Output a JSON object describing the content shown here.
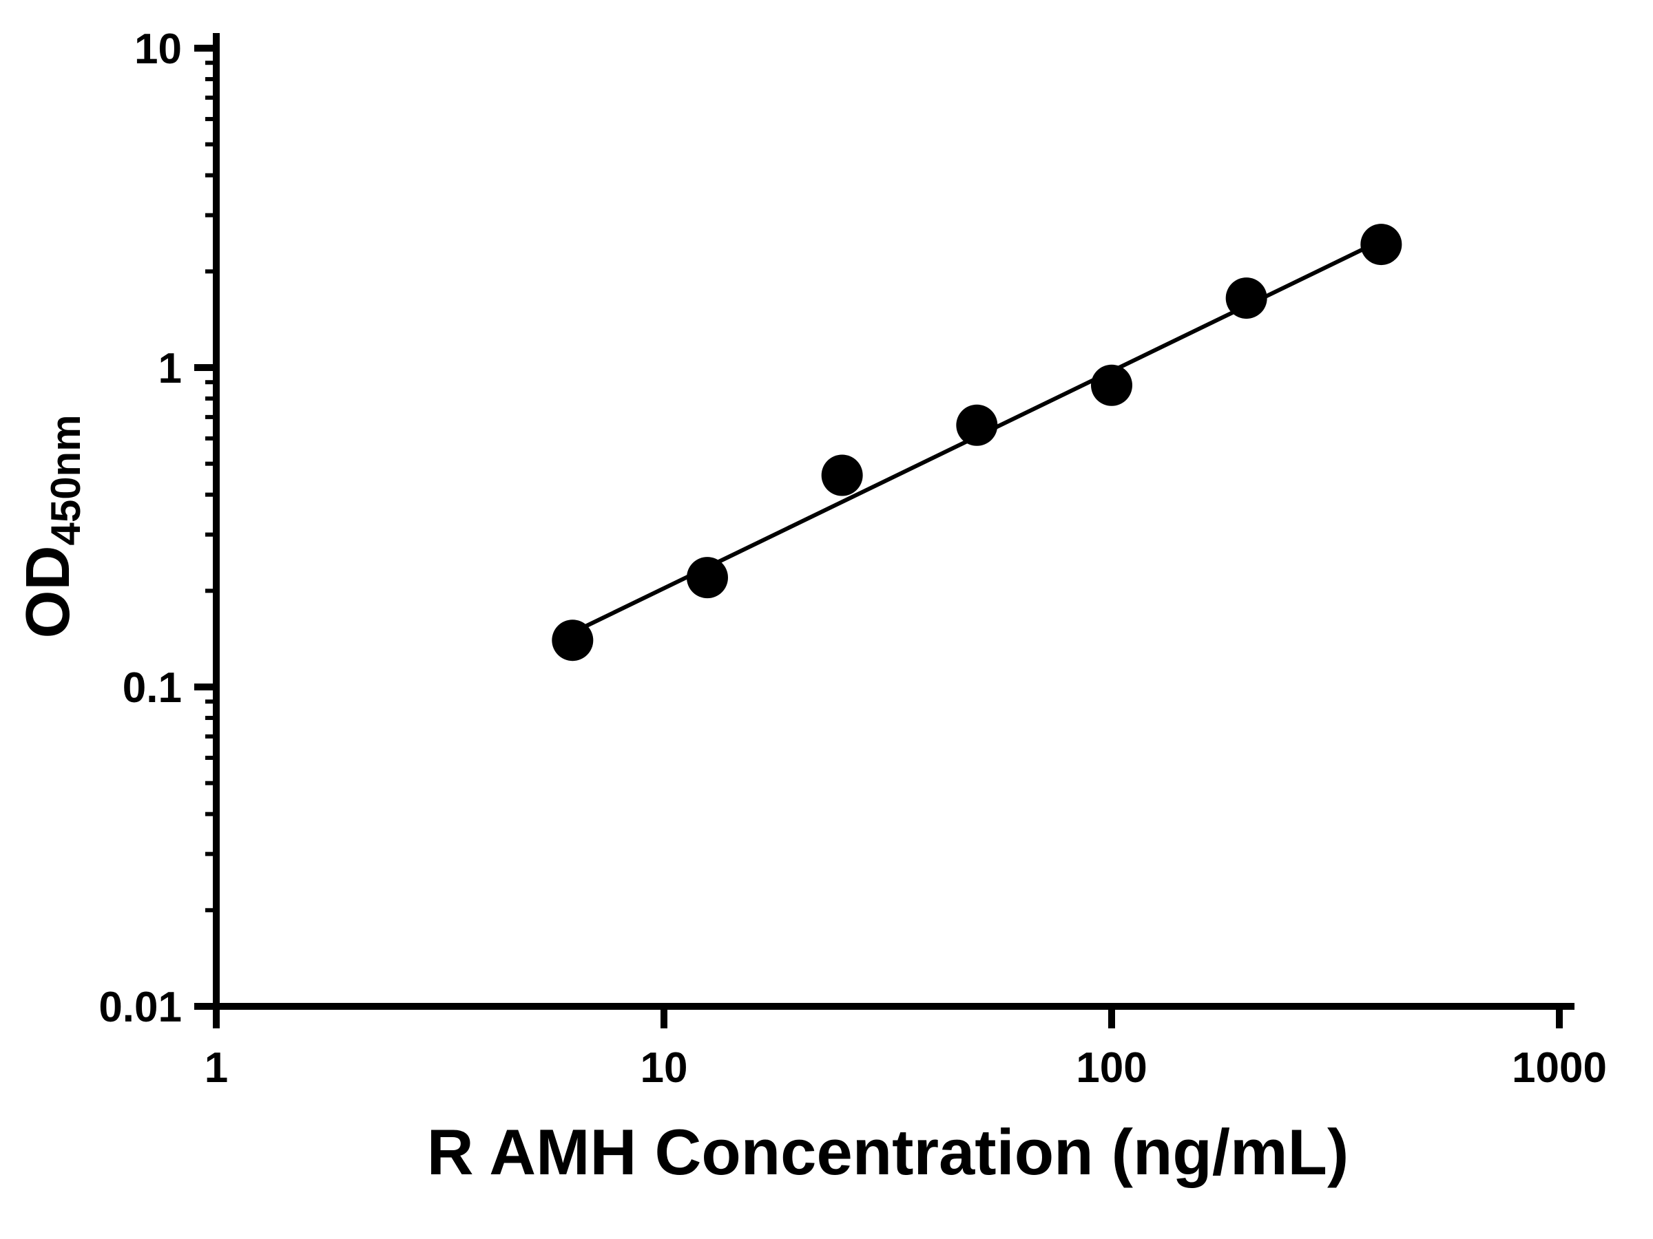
{
  "figure": {
    "background_color": "#ffffff",
    "axis_color": "#000000"
  },
  "chart_data": {
    "type": "scatter",
    "title": "",
    "xlabel": "R AMH Concentration (ng/mL)",
    "ylabel_main": "OD",
    "ylabel_subscript": "450nm",
    "x_scale": "log",
    "y_scale": "log",
    "xlim": [
      1,
      1000
    ],
    "ylim": [
      0.01,
      10
    ],
    "grid": false,
    "legend": false,
    "x_ticks": [
      {
        "value": 1,
        "label": "1"
      },
      {
        "value": 10,
        "label": "10"
      },
      {
        "value": 100,
        "label": "100"
      },
      {
        "value": 1000,
        "label": "1000"
      }
    ],
    "y_ticks": [
      {
        "value": 0.01,
        "label": "0.01"
      },
      {
        "value": 0.1,
        "label": "0.1"
      },
      {
        "value": 1,
        "label": "1"
      },
      {
        "value": 10,
        "label": "10"
      }
    ],
    "series": [
      {
        "name": "standard-curve-points",
        "marker": "circle",
        "marker_color": "#000000",
        "x": [
          6.25,
          12.5,
          25,
          50,
          100,
          200,
          400
        ],
        "y": [
          0.14,
          0.22,
          0.46,
          0.66,
          0.88,
          1.65,
          2.43
        ]
      }
    ],
    "fit_line": {
      "color": "#000000",
      "x1": 6.25,
      "y1": 0.148,
      "x2": 400,
      "y2": 2.5
    }
  }
}
